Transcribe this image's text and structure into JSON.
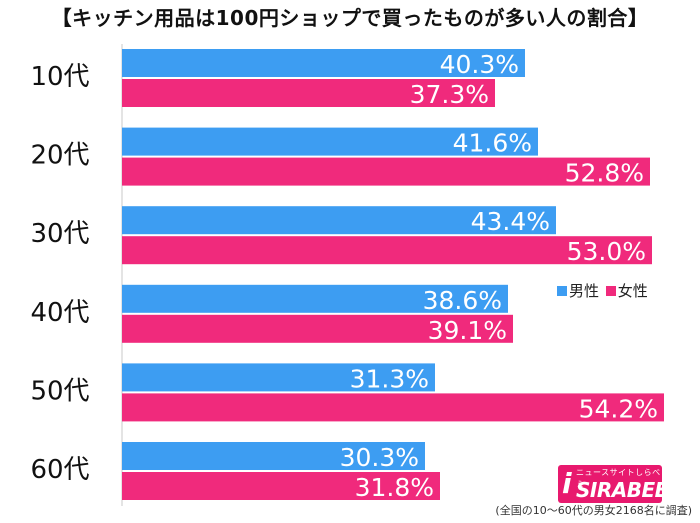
{
  "chart_data": {
    "type": "bar",
    "orientation": "horizontal",
    "title": "【キッチン用品は100円ショップで買ったものが多い人の割合】",
    "categories": [
      "10代",
      "20代",
      "30代",
      "40代",
      "50代",
      "60代"
    ],
    "series": [
      {
        "name": "男性",
        "color": "#3d9df2",
        "values": [
          40.3,
          41.6,
          43.4,
          38.6,
          31.3,
          30.3
        ]
      },
      {
        "name": "女性",
        "color": "#f02a7c",
        "values": [
          37.3,
          52.8,
          53.0,
          39.1,
          54.2,
          31.8
        ]
      }
    ],
    "value_labels": [
      [
        "40.3%",
        "41.6%",
        "43.4%",
        "38.6%",
        "31.3%",
        "30.3%"
      ],
      [
        "37.3%",
        "52.8%",
        "53.0%",
        "39.1%",
        "54.2%",
        "31.8%"
      ]
    ],
    "xlim": [
      0,
      100
    ],
    "grid": false,
    "legend_position": "right"
  },
  "logo": {
    "tagline": "ニュースサイトしらべぇ",
    "initial": "i",
    "wordmark": "SIRABEE"
  },
  "footnote": "(全国の10～60代の男女2168名に調査)"
}
